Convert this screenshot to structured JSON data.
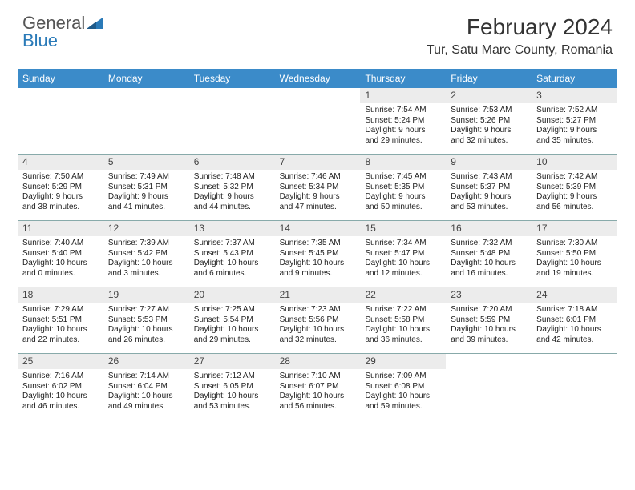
{
  "brand": {
    "name1": "General",
    "name2": "Blue"
  },
  "title": "February 2024",
  "location": "Tur, Satu Mare County, Romania",
  "colors": {
    "header_bg": "#3b8bc9",
    "header_text": "#ffffff",
    "daynum_bg": "#ececec",
    "border": "#6a8ca0",
    "brand_gray": "#555555",
    "brand_blue": "#2a7ab8",
    "body_text": "#222222",
    "page_bg": "#ffffff"
  },
  "typography": {
    "title_fontsize": 28,
    "location_fontsize": 16,
    "dayheader_fontsize": 12,
    "cell_fontsize": 10
  },
  "day_names": [
    "Sunday",
    "Monday",
    "Tuesday",
    "Wednesday",
    "Thursday",
    "Friday",
    "Saturday"
  ],
  "weeks": [
    [
      {
        "n": "",
        "lines": []
      },
      {
        "n": "",
        "lines": []
      },
      {
        "n": "",
        "lines": []
      },
      {
        "n": "",
        "lines": []
      },
      {
        "n": "1",
        "lines": [
          "Sunrise: 7:54 AM",
          "Sunset: 5:24 PM",
          "Daylight: 9 hours",
          "and 29 minutes."
        ]
      },
      {
        "n": "2",
        "lines": [
          "Sunrise: 7:53 AM",
          "Sunset: 5:26 PM",
          "Daylight: 9 hours",
          "and 32 minutes."
        ]
      },
      {
        "n": "3",
        "lines": [
          "Sunrise: 7:52 AM",
          "Sunset: 5:27 PM",
          "Daylight: 9 hours",
          "and 35 minutes."
        ]
      }
    ],
    [
      {
        "n": "4",
        "lines": [
          "Sunrise: 7:50 AM",
          "Sunset: 5:29 PM",
          "Daylight: 9 hours",
          "and 38 minutes."
        ]
      },
      {
        "n": "5",
        "lines": [
          "Sunrise: 7:49 AM",
          "Sunset: 5:31 PM",
          "Daylight: 9 hours",
          "and 41 minutes."
        ]
      },
      {
        "n": "6",
        "lines": [
          "Sunrise: 7:48 AM",
          "Sunset: 5:32 PM",
          "Daylight: 9 hours",
          "and 44 minutes."
        ]
      },
      {
        "n": "7",
        "lines": [
          "Sunrise: 7:46 AM",
          "Sunset: 5:34 PM",
          "Daylight: 9 hours",
          "and 47 minutes."
        ]
      },
      {
        "n": "8",
        "lines": [
          "Sunrise: 7:45 AM",
          "Sunset: 5:35 PM",
          "Daylight: 9 hours",
          "and 50 minutes."
        ]
      },
      {
        "n": "9",
        "lines": [
          "Sunrise: 7:43 AM",
          "Sunset: 5:37 PM",
          "Daylight: 9 hours",
          "and 53 minutes."
        ]
      },
      {
        "n": "10",
        "lines": [
          "Sunrise: 7:42 AM",
          "Sunset: 5:39 PM",
          "Daylight: 9 hours",
          "and 56 minutes."
        ]
      }
    ],
    [
      {
        "n": "11",
        "lines": [
          "Sunrise: 7:40 AM",
          "Sunset: 5:40 PM",
          "Daylight: 10 hours",
          "and 0 minutes."
        ]
      },
      {
        "n": "12",
        "lines": [
          "Sunrise: 7:39 AM",
          "Sunset: 5:42 PM",
          "Daylight: 10 hours",
          "and 3 minutes."
        ]
      },
      {
        "n": "13",
        "lines": [
          "Sunrise: 7:37 AM",
          "Sunset: 5:43 PM",
          "Daylight: 10 hours",
          "and 6 minutes."
        ]
      },
      {
        "n": "14",
        "lines": [
          "Sunrise: 7:35 AM",
          "Sunset: 5:45 PM",
          "Daylight: 10 hours",
          "and 9 minutes."
        ]
      },
      {
        "n": "15",
        "lines": [
          "Sunrise: 7:34 AM",
          "Sunset: 5:47 PM",
          "Daylight: 10 hours",
          "and 12 minutes."
        ]
      },
      {
        "n": "16",
        "lines": [
          "Sunrise: 7:32 AM",
          "Sunset: 5:48 PM",
          "Daylight: 10 hours",
          "and 16 minutes."
        ]
      },
      {
        "n": "17",
        "lines": [
          "Sunrise: 7:30 AM",
          "Sunset: 5:50 PM",
          "Daylight: 10 hours",
          "and 19 minutes."
        ]
      }
    ],
    [
      {
        "n": "18",
        "lines": [
          "Sunrise: 7:29 AM",
          "Sunset: 5:51 PM",
          "Daylight: 10 hours",
          "and 22 minutes."
        ]
      },
      {
        "n": "19",
        "lines": [
          "Sunrise: 7:27 AM",
          "Sunset: 5:53 PM",
          "Daylight: 10 hours",
          "and 26 minutes."
        ]
      },
      {
        "n": "20",
        "lines": [
          "Sunrise: 7:25 AM",
          "Sunset: 5:54 PM",
          "Daylight: 10 hours",
          "and 29 minutes."
        ]
      },
      {
        "n": "21",
        "lines": [
          "Sunrise: 7:23 AM",
          "Sunset: 5:56 PM",
          "Daylight: 10 hours",
          "and 32 minutes."
        ]
      },
      {
        "n": "22",
        "lines": [
          "Sunrise: 7:22 AM",
          "Sunset: 5:58 PM",
          "Daylight: 10 hours",
          "and 36 minutes."
        ]
      },
      {
        "n": "23",
        "lines": [
          "Sunrise: 7:20 AM",
          "Sunset: 5:59 PM",
          "Daylight: 10 hours",
          "and 39 minutes."
        ]
      },
      {
        "n": "24",
        "lines": [
          "Sunrise: 7:18 AM",
          "Sunset: 6:01 PM",
          "Daylight: 10 hours",
          "and 42 minutes."
        ]
      }
    ],
    [
      {
        "n": "25",
        "lines": [
          "Sunrise: 7:16 AM",
          "Sunset: 6:02 PM",
          "Daylight: 10 hours",
          "and 46 minutes."
        ]
      },
      {
        "n": "26",
        "lines": [
          "Sunrise: 7:14 AM",
          "Sunset: 6:04 PM",
          "Daylight: 10 hours",
          "and 49 minutes."
        ]
      },
      {
        "n": "27",
        "lines": [
          "Sunrise: 7:12 AM",
          "Sunset: 6:05 PM",
          "Daylight: 10 hours",
          "and 53 minutes."
        ]
      },
      {
        "n": "28",
        "lines": [
          "Sunrise: 7:10 AM",
          "Sunset: 6:07 PM",
          "Daylight: 10 hours",
          "and 56 minutes."
        ]
      },
      {
        "n": "29",
        "lines": [
          "Sunrise: 7:09 AM",
          "Sunset: 6:08 PM",
          "Daylight: 10 hours",
          "and 59 minutes."
        ]
      },
      {
        "n": "",
        "lines": []
      },
      {
        "n": "",
        "lines": []
      }
    ]
  ]
}
